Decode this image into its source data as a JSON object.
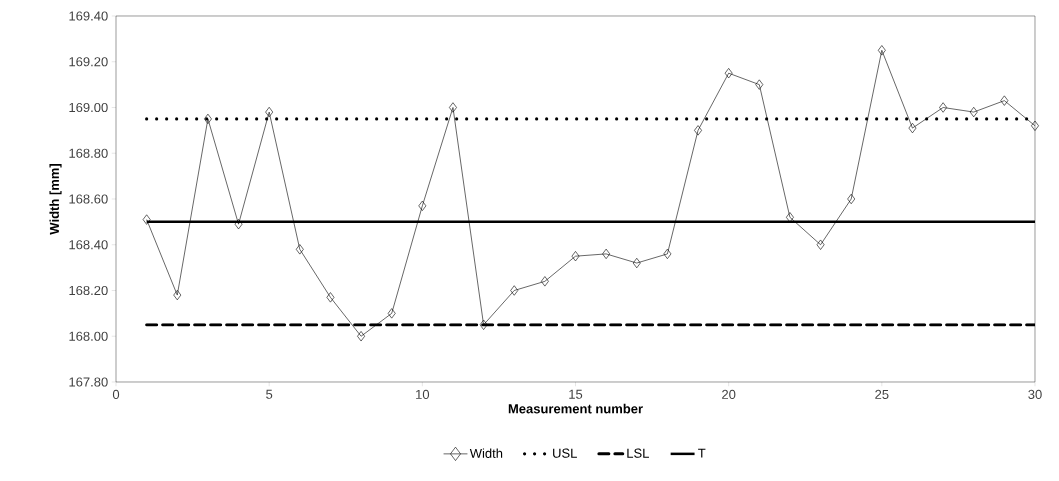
{
  "chart_data": {
    "type": "line",
    "xlabel": "Measurement number",
    "ylabel": "Width [mm]",
    "xlim": [
      0,
      30
    ],
    "xticks": [
      0,
      5,
      10,
      15,
      20,
      25,
      30
    ],
    "ylim": [
      167.8,
      169.4
    ],
    "yticks": [
      {
        "value": 167.8,
        "label": "167.80"
      },
      {
        "value": 168.0,
        "label": "168.00"
      },
      {
        "value": 168.2,
        "label": "168.20"
      },
      {
        "value": 168.4,
        "label": "168.40"
      },
      {
        "value": 168.6,
        "label": "168.60"
      },
      {
        "value": 168.8,
        "label": "168.80"
      },
      {
        "value": 169.0,
        "label": "169.00"
      },
      {
        "value": 169.2,
        "label": "169.20"
      },
      {
        "value": 169.4,
        "label": "169.40"
      }
    ],
    "x": [
      1,
      2,
      3,
      4,
      5,
      6,
      7,
      8,
      9,
      10,
      11,
      12,
      13,
      14,
      15,
      16,
      17,
      18,
      19,
      20,
      21,
      22,
      23,
      24,
      25,
      26,
      27,
      28,
      29,
      30
    ],
    "series": [
      {
        "name": "Width",
        "color": "#000000",
        "marker": "diamond",
        "line_style": "solid",
        "values": [
          168.51,
          168.18,
          168.95,
          168.49,
          168.98,
          168.38,
          168.17,
          168.0,
          168.1,
          168.57,
          169.0,
          168.05,
          168.2,
          168.24,
          168.35,
          168.36,
          168.32,
          168.36,
          168.9,
          169.15,
          169.1,
          168.52,
          168.4,
          168.6,
          169.25,
          168.91,
          169.0,
          168.98,
          169.03,
          168.92
        ]
      },
      {
        "name": "USL",
        "color": "#000000",
        "marker": "none",
        "line_style": "dotted",
        "values": [
          168.95,
          168.95,
          168.95,
          168.95,
          168.95,
          168.95,
          168.95,
          168.95,
          168.95,
          168.95,
          168.95,
          168.95,
          168.95,
          168.95,
          168.95,
          168.95,
          168.95,
          168.95,
          168.95,
          168.95,
          168.95,
          168.95,
          168.95,
          168.95,
          168.95,
          168.95,
          168.95,
          168.95,
          168.95,
          168.95
        ]
      },
      {
        "name": "LSL",
        "color": "#000000",
        "marker": "none",
        "line_style": "dashed",
        "values": [
          168.05,
          168.05,
          168.05,
          168.05,
          168.05,
          168.05,
          168.05,
          168.05,
          168.05,
          168.05,
          168.05,
          168.05,
          168.05,
          168.05,
          168.05,
          168.05,
          168.05,
          168.05,
          168.05,
          168.05,
          168.05,
          168.05,
          168.05,
          168.05,
          168.05,
          168.05,
          168.05,
          168.05,
          168.05,
          168.05
        ]
      },
      {
        "name": "T",
        "color": "#000000",
        "marker": "none",
        "line_style": "solid",
        "values": [
          168.5,
          168.5,
          168.5,
          168.5,
          168.5,
          168.5,
          168.5,
          168.5,
          168.5,
          168.5,
          168.5,
          168.5,
          168.5,
          168.5,
          168.5,
          168.5,
          168.5,
          168.5,
          168.5,
          168.5,
          168.5,
          168.5,
          168.5,
          168.5,
          168.5,
          168.5,
          168.5,
          168.5,
          168.5,
          168.5
        ]
      }
    ],
    "grid": false,
    "legend": "bottom"
  }
}
